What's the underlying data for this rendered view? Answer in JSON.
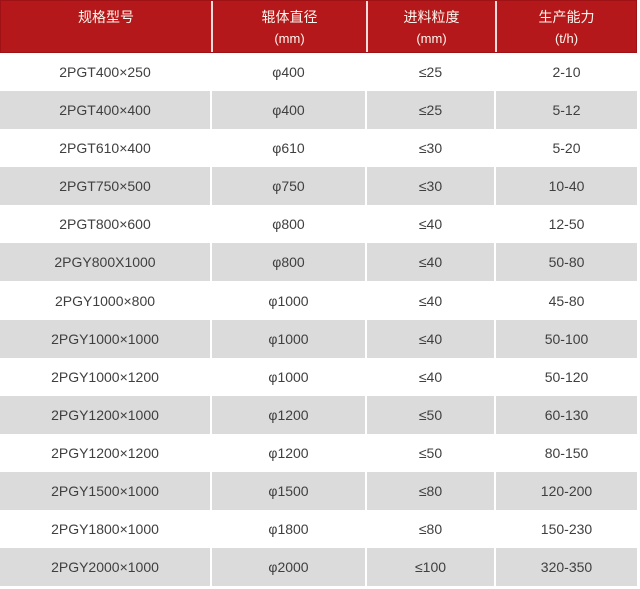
{
  "table": {
    "columns": [
      {
        "label": "规格型号",
        "unit": ""
      },
      {
        "label": "辊体直径",
        "unit": "(mm)"
      },
      {
        "label": "进料粒度",
        "unit": "(mm)"
      },
      {
        "label": "生产能力",
        "unit": "(t/h)"
      }
    ],
    "rows": [
      [
        "2PGT400×250",
        "φ400",
        "≤25",
        "2-10"
      ],
      [
        "2PGT400×400",
        "φ400",
        "≤25",
        "5-12"
      ],
      [
        "2PGT610×400",
        "φ610",
        "≤30",
        "5-20"
      ],
      [
        "2PGT750×500",
        "φ750",
        "≤30",
        "10-40"
      ],
      [
        "2PGT800×600",
        "φ800",
        "≤40",
        "12-50"
      ],
      [
        "2PGY800X1000",
        "φ800",
        "≤40",
        "50-80"
      ],
      [
        "2PGY1000×800",
        "φ1000",
        "≤40",
        "45-80"
      ],
      [
        "2PGY1000×1000",
        "φ1000",
        "≤40",
        "50-100"
      ],
      [
        "2PGY1000×1200",
        "φ1000",
        "≤40",
        "50-120"
      ],
      [
        "2PGY1200×1000",
        "φ1200",
        "≤50",
        "60-130"
      ],
      [
        "2PGY1200×1200",
        "φ1200",
        "≤50",
        "80-150"
      ],
      [
        "2PGY1500×1000",
        "φ1500",
        "≤80",
        "120-200"
      ],
      [
        "2PGY1800×1000",
        "φ1800",
        "≤80",
        "150-230"
      ],
      [
        "2PGY2000×1000",
        "φ2000",
        "≤100",
        "320-350"
      ]
    ]
  },
  "colors": {
    "header_bg": "#b5181b",
    "header_border": "#9e1114",
    "header_text": "#fcf7ef",
    "row_even_bg": "#ffffff",
    "row_odd_bg": "#dbdbdb",
    "cell_text": "#3f3f3f",
    "divider": "#ffffff"
  },
  "chart_data": {
    "type": "table",
    "title": "",
    "columns": [
      "规格型号",
      "辊体直径 (mm)",
      "进料粒度 (mm)",
      "生产能力 (t/h)"
    ],
    "rows": [
      [
        "2PGT400×250",
        "φ400",
        "≤25",
        "2-10"
      ],
      [
        "2PGT400×400",
        "φ400",
        "≤25",
        "5-12"
      ],
      [
        "2PGT610×400",
        "φ610",
        "≤30",
        "5-20"
      ],
      [
        "2PGT750×500",
        "φ750",
        "≤30",
        "10-40"
      ],
      [
        "2PGT800×600",
        "φ800",
        "≤40",
        "12-50"
      ],
      [
        "2PGY800X1000",
        "φ800",
        "≤40",
        "50-80"
      ],
      [
        "2PGY1000×800",
        "φ1000",
        "≤40",
        "45-80"
      ],
      [
        "2PGY1000×1000",
        "φ1000",
        "≤40",
        "50-100"
      ],
      [
        "2PGY1000×1200",
        "φ1000",
        "≤40",
        "50-120"
      ],
      [
        "2PGY1200×1000",
        "φ1200",
        "≤50",
        "60-130"
      ],
      [
        "2PGY1200×1200",
        "φ1200",
        "≤50",
        "80-150"
      ],
      [
        "2PGY1500×1000",
        "φ1500",
        "≤80",
        "120-200"
      ],
      [
        "2PGY1800×1000",
        "φ1800",
        "≤80",
        "150-230"
      ],
      [
        "2PGY2000×1000",
        "φ2000",
        "≤100",
        "320-350"
      ]
    ],
    "legend_position": "none",
    "grid": false
  }
}
